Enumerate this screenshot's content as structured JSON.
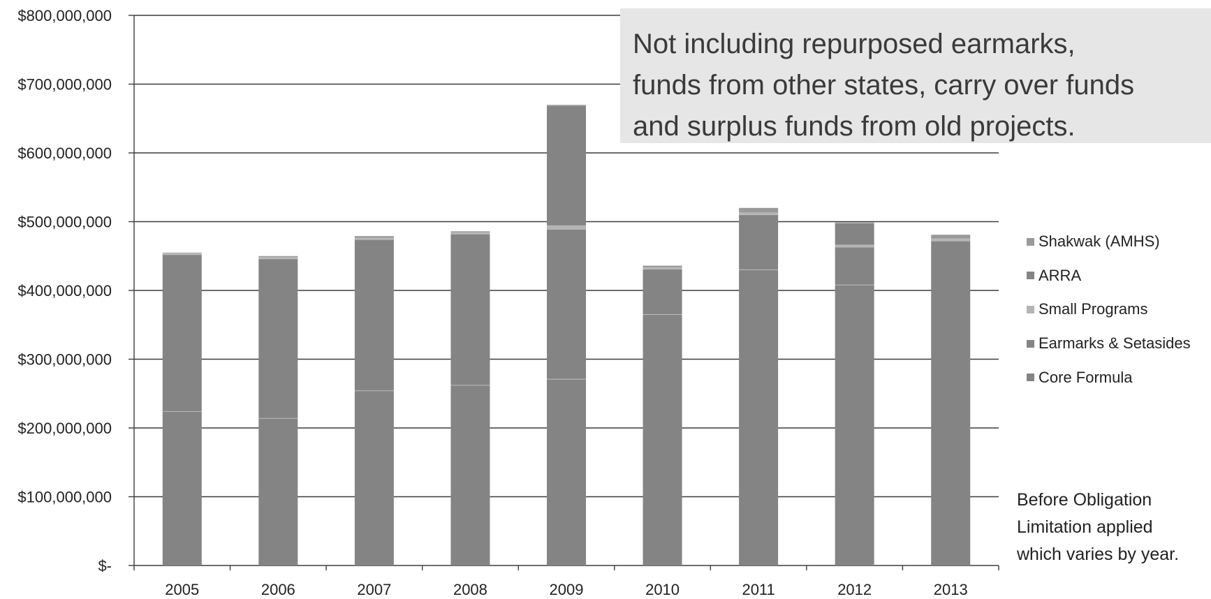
{
  "chart_data": {
    "type": "bar",
    "stacked": true,
    "categories": [
      "2005",
      "2006",
      "2007",
      "2008",
      "2009",
      "2010",
      "2011",
      "2012",
      "2013"
    ],
    "series": [
      {
        "name": "Core Formula",
        "color": "#848484",
        "values": [
          224000000,
          214000000,
          254000000,
          262000000,
          271000000,
          365000000,
          430000000,
          408000000,
          472000000
        ]
      },
      {
        "name": "Earmarks & Setasides",
        "color": "#848484",
        "values": [
          228000000,
          232000000,
          220000000,
          220000000,
          218000000,
          66000000,
          80000000,
          55000000,
          0
        ]
      },
      {
        "name": "Small Programs",
        "color": "#b4b4b4",
        "values": [
          2000000,
          2000000,
          2000000,
          2000000,
          5000000,
          2000000,
          3000000,
          3000000,
          3000000
        ]
      },
      {
        "name": "ARRA",
        "color": "#848484",
        "values": [
          0,
          0,
          0,
          0,
          175000000,
          0,
          0,
          32000000,
          0
        ]
      },
      {
        "name": "Shakwak (AMHS)",
        "color": "#9a9a9a",
        "values": [
          1000000,
          2000000,
          3000000,
          2000000,
          1000000,
          3000000,
          7000000,
          1000000,
          6000000
        ]
      }
    ],
    "y_ticks": [
      "$-",
      "$100,000,000",
      "$200,000,000",
      "$300,000,000",
      "$400,000,000",
      "$500,000,000",
      "$600,000,000",
      "$700,000,000",
      "$800,000,000"
    ],
    "ylim": [
      0,
      800000000
    ],
    "grid": true,
    "legend_position": "right",
    "legend_order": [
      "Shakwak (AMHS)",
      "ARRA",
      "Small Programs",
      "Earmarks & Setasides",
      "Core Formula"
    ],
    "annotation": "Not including repurposed earmarks,\nfunds from other states, carry over funds\nand surplus funds from old projects.",
    "note": "Before Obligation\nLimitation applied\nwhich varies by year."
  },
  "colors": {
    "bar": "#848484",
    "segment_line": "#bdbdbd",
    "grid": "#3c3c3c",
    "annotation_bg": "#e6e6e6"
  }
}
